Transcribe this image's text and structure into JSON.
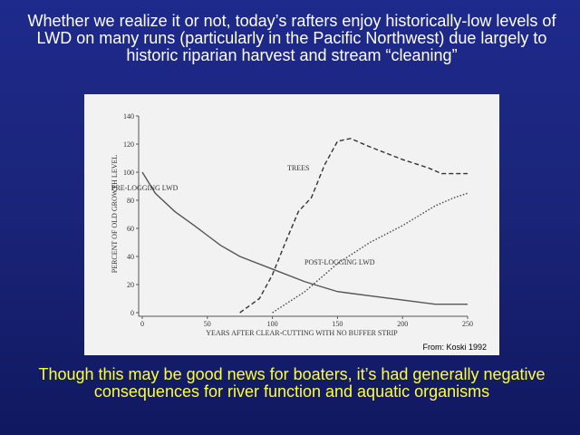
{
  "slide": {
    "heading": "Whether we realize it or not, today’s rafters enjoy historically-low levels of LWD on many runs (particularly in the Pacific Northwest) due largely to historic riparian harvest and stream “cleaning”",
    "footer": "Though this may be good news for boaters, it’s had generally negative consequences for river function and aquatic organisms"
  },
  "chart_data": {
    "type": "line",
    "x_label": "YEARS AFTER CLEAR-CUTTING WITH NO BUFFER STRIP",
    "y_label": "PERCENT OF OLD GROWTH  LEVEL",
    "source": "From: Koski 1992",
    "xlim": [
      0,
      250
    ],
    "xticks": [
      0,
      50,
      100,
      150,
      200,
      250
    ],
    "ylim": [
      0,
      140
    ],
    "yticks": [
      0,
      20,
      40,
      60,
      80,
      100,
      120,
      140
    ],
    "series": [
      {
        "name": "PRE-LOGGING LWD",
        "color": "#555555",
        "dash": "solid",
        "x": [
          0,
          10,
          25,
          40,
          50,
          60,
          75,
          100,
          125,
          150,
          175,
          200,
          225,
          250
        ],
        "values": [
          100,
          85,
          72,
          62,
          55,
          48,
          40,
          31,
          22,
          15,
          12,
          9,
          6,
          6
        ]
      },
      {
        "name": "TREES",
        "color": "#333333",
        "dash": "dashed",
        "x": [
          75,
          90,
          100,
          110,
          120,
          130,
          140,
          150,
          160,
          175,
          200,
          220,
          230,
          250
        ],
        "values": [
          0,
          10,
          27,
          50,
          72,
          82,
          105,
          122,
          124,
          118,
          109,
          103,
          99,
          99
        ]
      },
      {
        "name": "POST-LOGGING LWD",
        "color": "#444444",
        "dash": "dotted",
        "x": [
          100,
          125,
          150,
          175,
          200,
          225,
          240,
          250
        ],
        "values": [
          0,
          15,
          35,
          50,
          62,
          76,
          82,
          85
        ]
      }
    ]
  }
}
